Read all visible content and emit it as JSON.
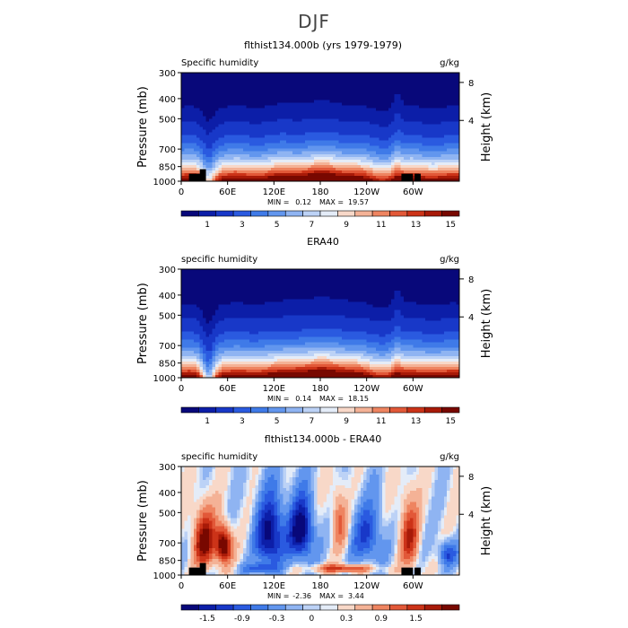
{
  "page": {
    "title": "DJF"
  },
  "colors": {
    "shq": [
      "#08087a",
      "#0c1ea8",
      "#1838c8",
      "#2a5ae0",
      "#3f7ae8",
      "#6296ee",
      "#8fb4f2",
      "#bcd2f6",
      "#e4ecf8",
      "#f8d8c8",
      "#f4b296",
      "#ee8460",
      "#e25838",
      "#cc3318",
      "#a81a08",
      "#780800"
    ],
    "diff": [
      "#08087a",
      "#0c1ea8",
      "#1838c8",
      "#2a5ae0",
      "#3f7ae8",
      "#6296ee",
      "#8fb4f2",
      "#bcd2f6",
      "#e4ecf8",
      "#f8d8c8",
      "#f4b296",
      "#ee8460",
      "#e25838",
      "#cc3318",
      "#a81a08",
      "#780800"
    ]
  },
  "chart_data": [
    {
      "type": "heatmap",
      "title": "flthist134.000b (yrs 1979-1979)",
      "left_string": "Specific humidity",
      "right_string": "g/kg",
      "ylabel": "Pressure (mb)",
      "ylabel_right": "Height (km)",
      "x_ticks": [
        "0",
        "60E",
        "120E",
        "180",
        "120W",
        "60W"
      ],
      "x_tick_values": [
        0,
        60,
        120,
        180,
        240,
        300
      ],
      "xlim": [
        0,
        360
      ],
      "y_ticks": [
        "300",
        "400",
        "500",
        "700",
        "850",
        "1000"
      ],
      "y_tick_values": [
        300,
        400,
        500,
        700,
        850,
        1000
      ],
      "ylim": [
        300,
        1000
      ],
      "y_scale": "log",
      "height_ticks": [
        "8",
        "4"
      ],
      "height_tick_values": [
        8,
        4
      ],
      "stats": {
        "min": "0.12",
        "max": "19.57"
      },
      "colorbar_labels": [
        "1",
        "3",
        "5",
        "7",
        "9",
        "11",
        "13",
        "15"
      ],
      "colorbar_levels": [
        0.5,
        1,
        2,
        3,
        4,
        5,
        6,
        7,
        8,
        9,
        10,
        11,
        12,
        13,
        14,
        15
      ],
      "field": "shq",
      "topography": [
        {
          "x": [
            10,
            30
          ],
          "p": 920
        },
        {
          "x": [
            24,
            32
          ],
          "p": 875
        },
        {
          "x": [
            285,
            300
          ],
          "p": 920
        },
        {
          "x": [
            302,
            310
          ],
          "p": 920
        }
      ]
    },
    {
      "type": "heatmap",
      "title": "ERA40",
      "left_string": "specific humidity",
      "right_string": "g/kg",
      "ylabel": "Pressure (mb)",
      "ylabel_right": "Height (km)",
      "x_ticks": [
        "0",
        "60E",
        "120E",
        "180",
        "120W",
        "60W"
      ],
      "x_tick_values": [
        0,
        60,
        120,
        180,
        240,
        300
      ],
      "xlim": [
        0,
        360
      ],
      "y_ticks": [
        "300",
        "400",
        "500",
        "700",
        "850",
        "1000"
      ],
      "y_tick_values": [
        300,
        400,
        500,
        700,
        850,
        1000
      ],
      "ylim": [
        300,
        1000
      ],
      "y_scale": "log",
      "height_ticks": [
        "8",
        "4"
      ],
      "height_tick_values": [
        8,
        4
      ],
      "stats": {
        "min": "0.14",
        "max": "18.15"
      },
      "colorbar_labels": [
        "1",
        "3",
        "5",
        "7",
        "9",
        "11",
        "13",
        "15"
      ],
      "colorbar_levels": [
        0.5,
        1,
        2,
        3,
        4,
        5,
        6,
        7,
        8,
        9,
        10,
        11,
        12,
        13,
        14,
        15
      ],
      "field": "shq_era",
      "topography": []
    },
    {
      "type": "heatmap",
      "title": "flthist134.000b - ERA40",
      "left_string": "specific humidity",
      "right_string": "g/kg",
      "ylabel": "Pressure (mb)",
      "ylabel_right": "Height (km)",
      "x_ticks": [
        "0",
        "60E",
        "120E",
        "180",
        "120W",
        "60W"
      ],
      "x_tick_values": [
        0,
        60,
        120,
        180,
        240,
        300
      ],
      "xlim": [
        0,
        360
      ],
      "y_ticks": [
        "300",
        "400",
        "500",
        "700",
        "850",
        "1000"
      ],
      "y_tick_values": [
        300,
        400,
        500,
        700,
        850,
        1000
      ],
      "ylim": [
        300,
        1000
      ],
      "y_scale": "log",
      "height_ticks": [
        "8",
        "4"
      ],
      "height_tick_values": [
        8,
        4
      ],
      "stats": {
        "min": "-2.36",
        "max": "3.44"
      },
      "colorbar_labels": [
        "-1.5",
        "-0.9",
        "-0.3",
        "0",
        "0.3",
        "0.9",
        "1.5"
      ],
      "colorbar_levels": [
        -1.8,
        -1.5,
        -1.2,
        -0.9,
        -0.6,
        -0.3,
        -0.1,
        0,
        0.1,
        0.3,
        0.6,
        0.9,
        1.2,
        1.5,
        1.8,
        2.1
      ],
      "field": "diff",
      "topography": [
        {
          "x": [
            10,
            30
          ],
          "p": 920
        },
        {
          "x": [
            24,
            32
          ],
          "p": 875
        },
        {
          "x": [
            285,
            300
          ],
          "p": 920
        },
        {
          "x": [
            302,
            310
          ],
          "p": 920
        }
      ]
    }
  ]
}
